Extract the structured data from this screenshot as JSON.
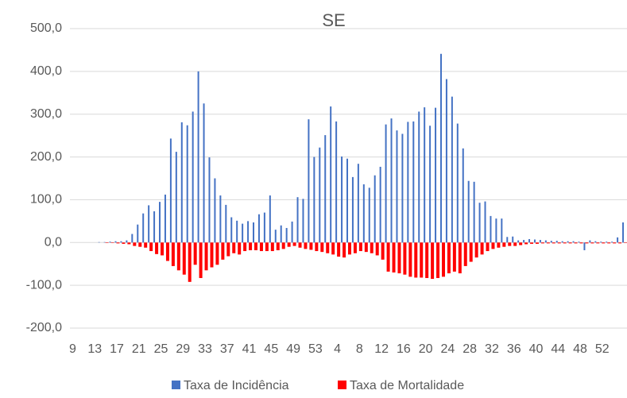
{
  "chart_data": {
    "type": "bar",
    "title": "SE",
    "categories": [
      "9",
      null,
      null,
      null,
      "13",
      null,
      null,
      null,
      "17",
      null,
      null,
      null,
      "21",
      null,
      null,
      null,
      "25",
      null,
      null,
      null,
      "29",
      null,
      null,
      null,
      "33",
      null,
      null,
      null,
      "37",
      null,
      null,
      null,
      "41",
      null,
      null,
      null,
      "45",
      null,
      null,
      null,
      "49",
      null,
      null,
      null,
      "53",
      null,
      null,
      null,
      "4",
      null,
      null,
      null,
      "8",
      null,
      null,
      null,
      "12",
      null,
      null,
      null,
      "16",
      null,
      null,
      null,
      "20",
      null,
      null,
      null,
      "24",
      null,
      null,
      null,
      "28",
      null,
      null,
      null,
      "32",
      null,
      null,
      null,
      "36",
      null,
      null,
      null,
      "40",
      null,
      null,
      null,
      "44",
      null,
      null,
      null,
      "48",
      null,
      null,
      null,
      "52",
      null,
      null,
      null,
      null
    ],
    "series": [
      {
        "name": "Taxa de Incidência",
        "color": "#4472c4",
        "values": [
          0,
          0,
          0,
          0,
          0,
          1,
          1,
          2,
          3,
          3,
          5,
          20,
          42,
          68,
          87,
          73,
          95,
          112,
          243,
          212,
          281,
          274,
          306,
          400,
          325,
          199,
          150,
          110,
          88,
          59,
          51,
          44,
          50,
          47,
          66,
          70,
          110,
          30,
          40,
          34,
          49,
          106,
          102,
          288,
          200,
          222,
          251,
          318,
          283,
          201,
          196,
          153,
          184,
          136,
          128,
          157,
          177,
          276,
          290,
          262,
          254,
          282,
          283,
          306,
          316,
          273,
          315,
          441,
          382,
          341,
          278,
          220,
          144,
          142,
          93,
          96,
          62,
          56,
          56,
          13,
          14,
          5,
          6,
          8,
          7,
          6,
          5,
          4,
          4,
          3,
          3,
          3,
          2,
          -18,
          5,
          3,
          2,
          2,
          2,
          12,
          47
        ]
      },
      {
        "name": "Taxa de Mortalidade",
        "color": "#ff0000",
        "values": [
          0,
          0,
          0,
          0,
          0,
          0,
          -1,
          -1,
          -2,
          -3,
          -4,
          -8,
          -10,
          -12,
          -20,
          -27,
          -30,
          -43,
          -55,
          -65,
          -75,
          -92,
          -52,
          -83,
          -65,
          -58,
          -52,
          -40,
          -32,
          -25,
          -28,
          -20,
          -18,
          -18,
          -20,
          -20,
          -20,
          -18,
          -15,
          -10,
          -8,
          -12,
          -15,
          -17,
          -20,
          -22,
          -25,
          -28,
          -33,
          -35,
          -28,
          -25,
          -20,
          -22,
          -25,
          -30,
          -40,
          -68,
          -70,
          -72,
          -75,
          -80,
          -82,
          -82,
          -83,
          -85,
          -83,
          -80,
          -72,
          -68,
          -72,
          -55,
          -45,
          -35,
          -28,
          -20,
          -15,
          -12,
          -10,
          -8,
          -8,
          -6,
          -4,
          -3,
          -3,
          -2,
          -2,
          -2,
          -2,
          -2,
          -2,
          -2,
          -2,
          -2,
          -2,
          -2,
          -2,
          -2,
          -2,
          -2,
          -1
        ]
      }
    ],
    "ylim": [
      -200,
      500
    ],
    "yticks": [
      {
        "value": -200,
        "label": "-200,0"
      },
      {
        "value": -100,
        "label": "-100,0"
      },
      {
        "value": 0,
        "label": "0,0"
      },
      {
        "value": 100,
        "label": "100,0"
      },
      {
        "value": 200,
        "label": "200,0"
      },
      {
        "value": 300,
        "label": "300,0"
      },
      {
        "value": 400,
        "label": "400,0"
      },
      {
        "value": 500,
        "label": "500,0"
      }
    ],
    "grid": true,
    "legend": "bottom"
  }
}
